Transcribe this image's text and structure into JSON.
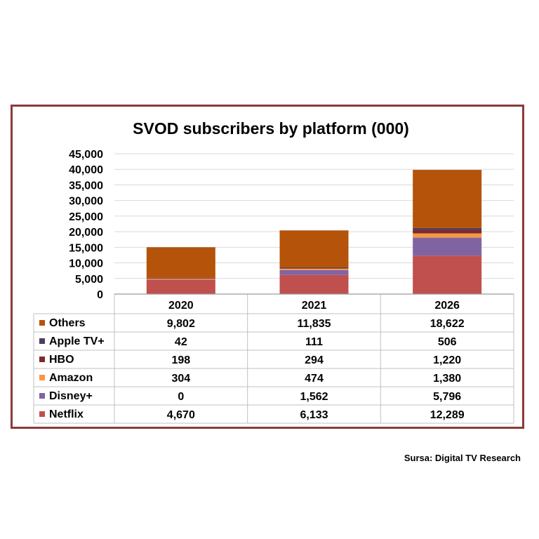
{
  "chart_data": {
    "type": "bar",
    "stacked": true,
    "title": "SVOD subscribers by platform (000)",
    "categories": [
      "2020",
      "2021",
      "2026"
    ],
    "ylim": [
      0,
      45000
    ],
    "yticks": [
      "0",
      "5,000",
      "10,000",
      "15,000",
      "20,000",
      "25,000",
      "30,000",
      "35,000",
      "40,000",
      "45,000"
    ],
    "grid": true,
    "legend": "data-table",
    "series": [
      {
        "name": "Netflix",
        "color": "#c0504d",
        "values": [
          4670,
          6133,
          12289
        ],
        "labels": [
          "4,670",
          "6,133",
          "12,289"
        ]
      },
      {
        "name": "Disney+",
        "color": "#8064a2",
        "values": [
          0,
          1562,
          5796
        ],
        "labels": [
          "0",
          "1,562",
          "5,796"
        ]
      },
      {
        "name": "Amazon",
        "color": "#f79646",
        "values": [
          304,
          474,
          1380
        ],
        "labels": [
          "304",
          "474",
          "1,380"
        ]
      },
      {
        "name": "HBO",
        "color": "#7b2c2c",
        "values": [
          198,
          294,
          1220
        ],
        "labels": [
          "198",
          "294",
          "1,220"
        ]
      },
      {
        "name": "Apple TV+",
        "color": "#4f3d63",
        "values": [
          42,
          111,
          506
        ],
        "labels": [
          "42",
          "111",
          "506"
        ]
      },
      {
        "name": "Others",
        "color": "#b45309",
        "values": [
          9802,
          11835,
          18622
        ],
        "labels": [
          "9,802",
          "11,835",
          "18,622"
        ]
      }
    ]
  },
  "source": "Sursa: Digital TV Research"
}
